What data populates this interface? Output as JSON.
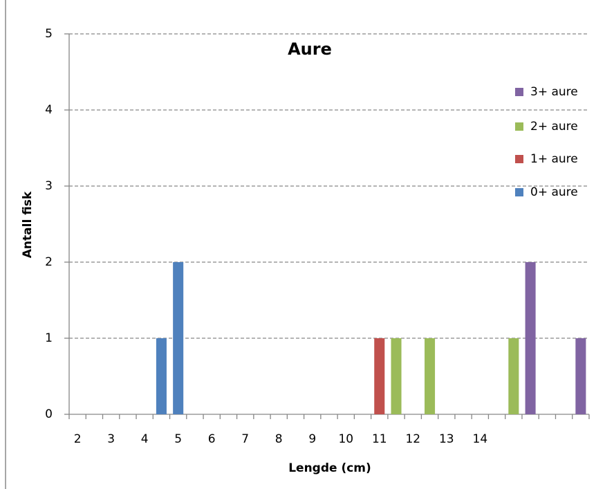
{
  "chart_data": {
    "type": "bar",
    "stacked": true,
    "title": "Aure",
    "x_label": "Lengde (cm)",
    "y_label": "Antall fisk",
    "categories": [
      "2",
      null,
      "3",
      null,
      "4",
      null,
      "5",
      null,
      "6",
      null,
      "7",
      null,
      "8",
      null,
      "9",
      null,
      "10",
      null,
      "11",
      null,
      "12",
      null,
      "13",
      null,
      "14",
      null,
      null,
      null,
      null,
      null,
      null
    ],
    "series": [
      {
        "name": "0+ aure",
        "color": "#4f81bd",
        "values": [
          null,
          null,
          null,
          null,
          null,
          1,
          2,
          null,
          null,
          null,
          null,
          null,
          null,
          null,
          null,
          null,
          null,
          null,
          null,
          null,
          null,
          null,
          null,
          null,
          null,
          null,
          null,
          null,
          null,
          null,
          null
        ]
      },
      {
        "name": "1+ aure",
        "color": "#c0504d",
        "values": [
          null,
          null,
          null,
          null,
          null,
          null,
          null,
          null,
          null,
          null,
          null,
          null,
          null,
          null,
          null,
          null,
          null,
          null,
          1,
          null,
          null,
          null,
          null,
          null,
          null,
          null,
          null,
          null,
          null,
          null,
          null
        ]
      },
      {
        "name": "2+ aure",
        "color": "#9bbb59",
        "values": [
          null,
          null,
          null,
          null,
          null,
          null,
          null,
          null,
          null,
          null,
          null,
          null,
          null,
          null,
          null,
          null,
          null,
          null,
          null,
          1,
          null,
          1,
          null,
          null,
          null,
          null,
          1,
          null,
          null,
          null,
          null
        ]
      },
      {
        "name": "3+ aure",
        "color": "#8064a2",
        "values": [
          null,
          null,
          null,
          null,
          null,
          null,
          null,
          null,
          null,
          null,
          null,
          null,
          null,
          null,
          null,
          null,
          null,
          null,
          null,
          null,
          null,
          null,
          null,
          null,
          null,
          null,
          null,
          2,
          null,
          null,
          1
        ]
      }
    ],
    "ylim": [
      0,
      5
    ],
    "yticks": [
      0,
      1,
      2,
      3,
      4,
      5
    ],
    "grid": true,
    "legend": "right"
  }
}
